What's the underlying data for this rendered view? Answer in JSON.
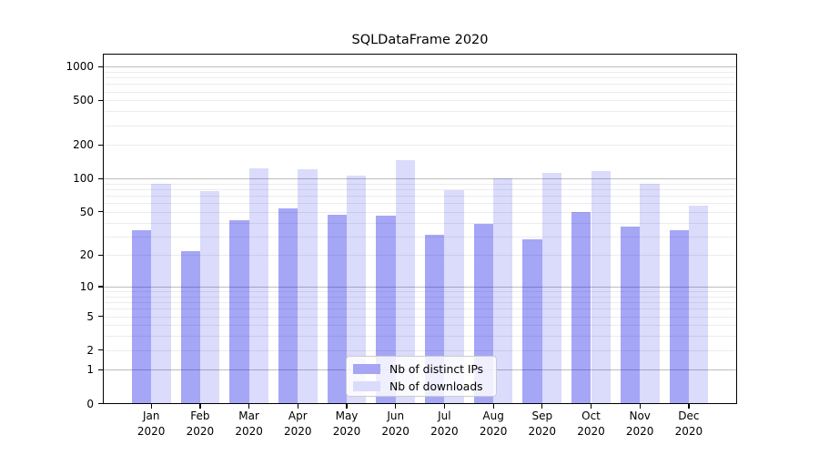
{
  "chart_data": {
    "type": "bar",
    "title": "SQLDataFrame 2020",
    "categories": [
      "Jan",
      "Feb",
      "Mar",
      "Apr",
      "May",
      "Jun",
      "Jul",
      "Aug",
      "Sep",
      "Oct",
      "Nov",
      "Dec"
    ],
    "year_label": "2020",
    "series": [
      {
        "name": "Nb of distinct IPs",
        "values": [
          34,
          22,
          42,
          54,
          47,
          46,
          31,
          39,
          28,
          50,
          37,
          34
        ],
        "color": "#a6a6f4",
        "rgba": "rgba(0,0,230,0.35)"
      },
      {
        "name": "Nb of downloads",
        "values": [
          90,
          77,
          124,
          122,
          106,
          146,
          78,
          100,
          112,
          116,
          90,
          57
        ],
        "color": "#dbdbfb",
        "rgba": "rgba(0,0,230,0.14)"
      }
    ],
    "yscale": "log1p",
    "yticks": [
      0,
      1,
      2,
      5,
      10,
      20,
      50,
      100,
      200,
      500,
      1000
    ],
    "ylim": [
      0,
      1300
    ],
    "xlabel": "",
    "ylabel": "",
    "grid": "horizontal, major and minor",
    "legend_position": "bottom-center inside plot",
    "colors": {
      "major_grid": "#bdbdbd",
      "minor_grid": "#ececec",
      "spine": "#000000",
      "background": "#ffffff"
    }
  }
}
